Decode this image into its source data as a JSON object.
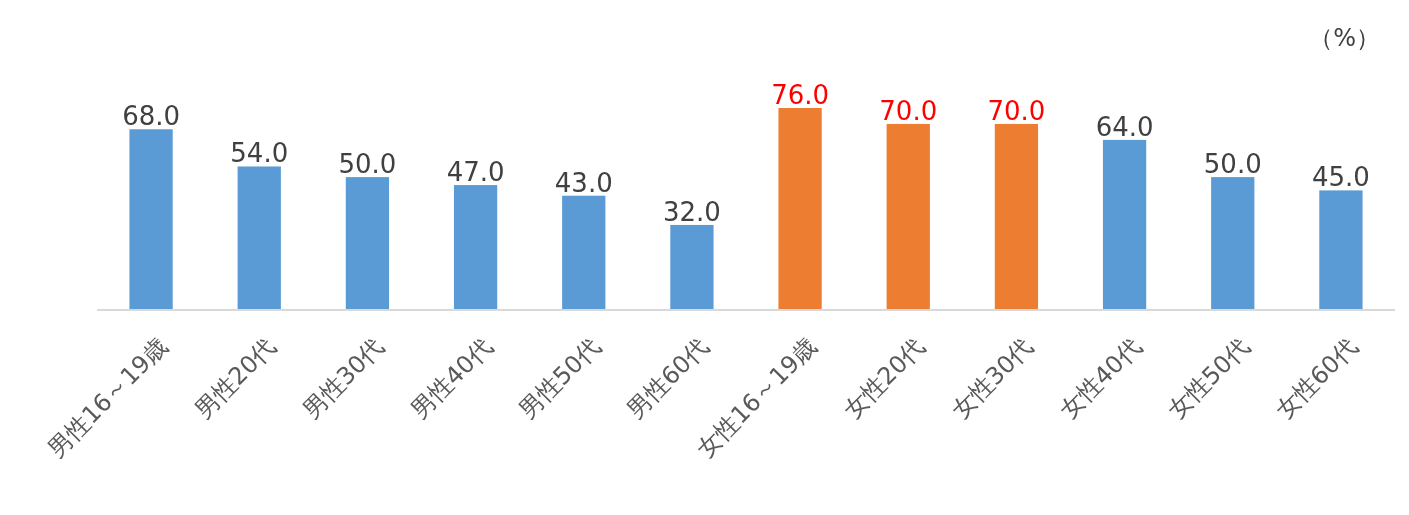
{
  "chart_data": {
    "type": "bar",
    "categories": [
      "男性16～19歳",
      "男性20代",
      "男性30代",
      "男性40代",
      "男性50代",
      "男性60代",
      "女性16～19歳",
      "女性20代",
      "女性30代",
      "女性40代",
      "女性50代",
      "女性60代"
    ],
    "values": [
      68.0,
      54.0,
      50.0,
      47.0,
      43.0,
      32.0,
      76.0,
      70.0,
      70.0,
      64.0,
      50.0,
      45.0
    ],
    "colors": [
      "#5b9bd5",
      "#5b9bd5",
      "#5b9bd5",
      "#5b9bd5",
      "#5b9bd5",
      "#5b9bd5",
      "#ed7d31",
      "#ed7d31",
      "#ed7d31",
      "#5b9bd5",
      "#5b9bd5",
      "#5b9bd5"
    ],
    "value_labels": [
      "68.0",
      "54.0",
      "50.0",
      "47.0",
      "43.0",
      "32.0",
      "76.0",
      "70.0",
      "70.0",
      "64.0",
      "50.0",
      "45.0"
    ],
    "tick_labels": "x",
    "annotations": [
      "（%）"
    ]
  }
}
